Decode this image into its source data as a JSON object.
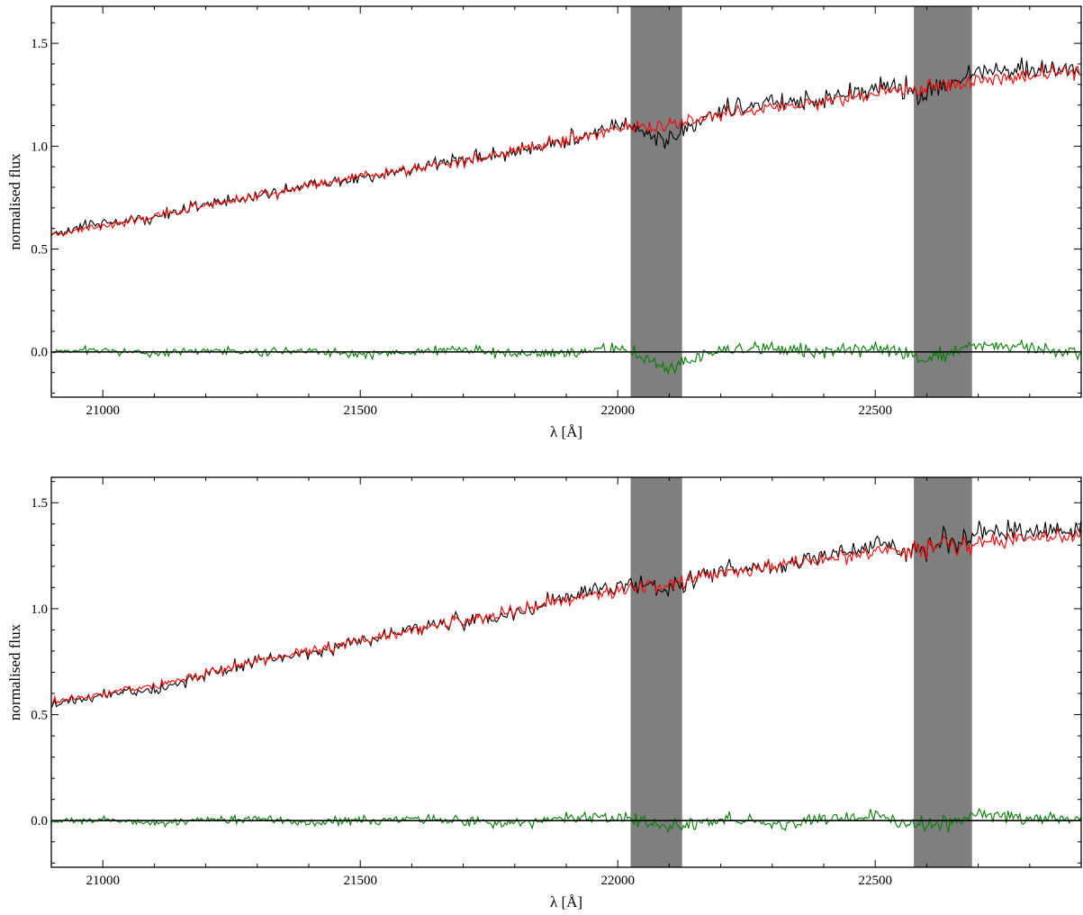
{
  "chart_data": [
    {
      "type": "line",
      "panel": "top",
      "xlabel": "λ [Å]",
      "ylabel": "normalised flux",
      "xlim": [
        20900,
        22900
      ],
      "ylim": [
        -0.22,
        1.68
      ],
      "xticks": [
        21000,
        21500,
        22000,
        22500
      ],
      "xtick_labels": [
        "21000",
        "21500",
        "22000",
        "22500"
      ],
      "yticks": [
        0.0,
        0.5,
        1.0,
        1.5
      ],
      "ytick_labels": [
        "0.0",
        "0.5",
        "1.0",
        "1.5"
      ],
      "shaded_bands": [
        [
          22025,
          22125
        ],
        [
          22575,
          22688
        ]
      ],
      "band_color": "#7f7f7f",
      "zero_line": 0.0,
      "series": [
        {
          "role": "observed",
          "color": "#000000",
          "x": [
            20900,
            21000,
            21100,
            21200,
            21300,
            21400,
            21500,
            21600,
            21700,
            21800,
            21900,
            22000,
            22100,
            22200,
            22300,
            22400,
            22500,
            22600,
            22700,
            22800,
            22900
          ],
          "values": [
            0.57,
            0.62,
            0.66,
            0.71,
            0.76,
            0.81,
            0.85,
            0.89,
            0.93,
            0.98,
            1.03,
            1.08,
            1.12,
            1.16,
            1.19,
            1.22,
            1.27,
            1.3,
            1.33,
            1.35,
            1.38
          ]
        },
        {
          "role": "model",
          "color": "#ff0000",
          "x": [
            20900,
            21000,
            21100,
            21200,
            21300,
            21400,
            21500,
            21600,
            21700,
            21800,
            21900,
            22000,
            22100,
            22200,
            22300,
            22400,
            22500,
            22600,
            22700,
            22800,
            22900
          ],
          "values": [
            0.57,
            0.61,
            0.66,
            0.71,
            0.76,
            0.81,
            0.85,
            0.89,
            0.93,
            0.98,
            1.03,
            1.08,
            1.11,
            1.15,
            1.18,
            1.21,
            1.26,
            1.29,
            1.32,
            1.34,
            1.37
          ]
        },
        {
          "role": "residual",
          "color": "#008000",
          "x": [
            20900,
            21000,
            21100,
            21200,
            21300,
            21400,
            21500,
            21600,
            21700,
            21800,
            21900,
            22000,
            22100,
            22200,
            22300,
            22400,
            22500,
            22600,
            22700,
            22800,
            22900
          ],
          "values": [
            0.0,
            0.01,
            -0.01,
            0.01,
            0.0,
            0.01,
            -0.01,
            0.0,
            0.01,
            -0.01,
            0.0,
            0.02,
            -0.08,
            0.01,
            0.02,
            0.0,
            0.02,
            -0.03,
            0.03,
            0.02,
            0.0
          ]
        }
      ]
    },
    {
      "type": "line",
      "panel": "bottom",
      "xlabel": "λ [Å]",
      "ylabel": "normalised flux",
      "xlim": [
        20900,
        22900
      ],
      "ylim": [
        -0.22,
        1.62
      ],
      "xticks": [
        21000,
        21500,
        22000,
        22500
      ],
      "xtick_labels": [
        "21000",
        "21500",
        "22000",
        "22500"
      ],
      "yticks": [
        0.0,
        0.5,
        1.0,
        1.5
      ],
      "ytick_labels": [
        "0.0",
        "0.5",
        "1.0",
        "1.5"
      ],
      "shaded_bands": [
        [
          22025,
          22125
        ],
        [
          22575,
          22688
        ]
      ],
      "band_color": "#7f7f7f",
      "zero_line": 0.0,
      "series": [
        {
          "role": "observed",
          "color": "#000000",
          "x": [
            20900,
            21000,
            21100,
            21200,
            21300,
            21400,
            21500,
            21600,
            21700,
            21800,
            21900,
            22000,
            22100,
            22200,
            22300,
            22400,
            22500,
            22600,
            22700,
            22800,
            22900
          ],
          "values": [
            0.55,
            0.59,
            0.63,
            0.68,
            0.74,
            0.8,
            0.85,
            0.9,
            0.94,
            0.99,
            1.04,
            1.09,
            1.13,
            1.18,
            1.21,
            1.24,
            1.28,
            1.31,
            1.33,
            1.35,
            1.37
          ]
        },
        {
          "role": "model",
          "color": "#ff0000",
          "x": [
            20900,
            21000,
            21100,
            21200,
            21300,
            21400,
            21500,
            21600,
            21700,
            21800,
            21900,
            22000,
            22100,
            22200,
            22300,
            22400,
            22500,
            22600,
            22700,
            22800,
            22900
          ],
          "values": [
            0.56,
            0.6,
            0.64,
            0.69,
            0.75,
            0.8,
            0.85,
            0.9,
            0.94,
            0.99,
            1.04,
            1.08,
            1.12,
            1.17,
            1.2,
            1.23,
            1.27,
            1.29,
            1.31,
            1.33,
            1.35
          ]
        },
        {
          "role": "residual",
          "color": "#008000",
          "x": [
            20900,
            21000,
            21100,
            21200,
            21300,
            21400,
            21500,
            21600,
            21700,
            21800,
            21900,
            22000,
            22100,
            22200,
            22300,
            22400,
            22500,
            22600,
            22700,
            22800,
            22900
          ],
          "values": [
            0.0,
            0.01,
            -0.01,
            0.0,
            0.01,
            -0.01,
            0.0,
            0.01,
            0.0,
            -0.01,
            0.01,
            0.02,
            -0.03,
            0.01,
            -0.02,
            0.01,
            0.02,
            -0.04,
            0.03,
            0.01,
            0.0
          ]
        }
      ]
    }
  ]
}
